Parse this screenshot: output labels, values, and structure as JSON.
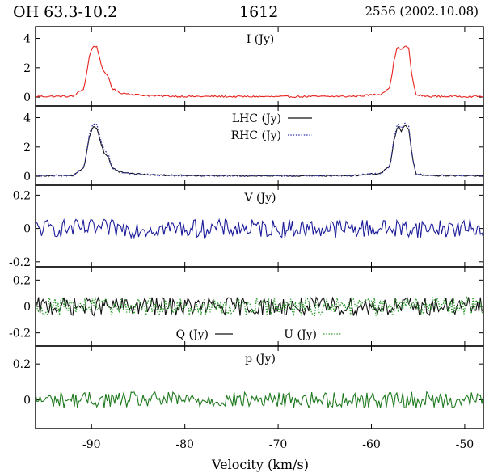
{
  "header": {
    "source": "OH 63.3-10.2",
    "frequency": "1612",
    "observation": "2556 (2002.10.08)"
  },
  "colors": {
    "I": "#e8221e",
    "LHC": "#111111",
    "RHC": "#2f2fa8",
    "V": "#1c1c9a",
    "Q": "#111111",
    "U": "#2e9a2e",
    "p": "#1e7a1e",
    "axis": "#000000"
  },
  "chart_data": {
    "type": "line",
    "xlabel": "Velocity (km/s)",
    "xlim": [
      -96,
      -48
    ],
    "xticks": [
      -90,
      -80,
      -70,
      -60,
      -50
    ],
    "xtick_labels": [
      "-90",
      "-80",
      "-70",
      "-60",
      "-50"
    ],
    "panels": [
      {
        "id": "I",
        "ylim": [
          -0.6,
          4.8
        ],
        "yticks": [
          0,
          2,
          4
        ],
        "ytick_labels": [
          "0",
          "2",
          "4"
        ],
        "series": [
          {
            "name": "I (Jy)",
            "color_key": "I",
            "style": "solid",
            "x": [
              -96,
              -92,
              -90.8,
              -90.2,
              -89.8,
              -89.4,
              -89.0,
              -88.6,
              -88.2,
              -87.8,
              -87.0,
              -85.0,
              -83.0,
              -80.0,
              -70.0,
              -62.0,
              -59.0,
              -58.0,
              -57.6,
              -57.2,
              -56.8,
              -56.4,
              -56.0,
              -55.6,
              -55.2,
              -54.0,
              -48.0
            ],
            "y": [
              0.05,
              0.05,
              0.6,
              2.9,
              3.5,
              3.4,
              2.3,
              1.6,
              1.4,
              0.6,
              0.3,
              0.15,
              0.08,
              0.05,
              0.03,
              0.05,
              0.2,
              0.7,
              2.4,
              3.5,
              3.2,
              3.5,
              3.3,
              1.2,
              0.15,
              0.05,
              0.05
            ]
          }
        ],
        "noise_level": 0.06,
        "legend": "top-center"
      },
      {
        "id": "LR",
        "ylim": [
          -0.6,
          4.8
        ],
        "yticks": [
          0,
          2,
          4
        ],
        "ytick_labels": [
          "0",
          "2",
          "4"
        ],
        "series": [
          {
            "name": "LHC (Jy)",
            "color_key": "LHC",
            "style": "solid",
            "x": [
              -96,
              -92,
              -90.8,
              -90.2,
              -89.8,
              -89.4,
              -89.0,
              -88.6,
              -88.2,
              -87.8,
              -87.0,
              -85.0,
              -83.0,
              -80.0,
              -70.0,
              -62.0,
              -59.0,
              -58.0,
              -57.6,
              -57.2,
              -56.8,
              -56.4,
              -56.0,
              -55.6,
              -55.2,
              -54.0,
              -48.0
            ],
            "y": [
              0.05,
              0.05,
              0.6,
              2.8,
              3.4,
              3.3,
              2.2,
              1.5,
              1.3,
              0.6,
              0.3,
              0.15,
              0.08,
              0.05,
              0.03,
              0.05,
              0.2,
              0.7,
              2.4,
              3.4,
              3.1,
              3.5,
              3.2,
              1.2,
              0.15,
              0.05,
              0.05
            ]
          },
          {
            "name": "RHC (Jy)",
            "color_key": "RHC",
            "style": "dotted",
            "x": [
              -96,
              -92,
              -90.8,
              -90.2,
              -89.8,
              -89.4,
              -89.0,
              -88.6,
              -88.2,
              -87.8,
              -87.0,
              -85.0,
              -83.0,
              -80.0,
              -70.0,
              -62.0,
              -59.0,
              -58.0,
              -57.6,
              -57.2,
              -56.8,
              -56.4,
              -56.0,
              -55.6,
              -55.2,
              -54.0,
              -48.0
            ],
            "y": [
              0.05,
              0.05,
              0.6,
              3.0,
              3.6,
              3.5,
              2.4,
              1.7,
              1.5,
              0.6,
              0.3,
              0.15,
              0.08,
              0.05,
              0.03,
              0.05,
              0.2,
              0.7,
              2.5,
              3.6,
              3.3,
              3.7,
              3.4,
              1.3,
              0.15,
              0.05,
              0.05
            ]
          }
        ],
        "noise_level": 0.05,
        "legend": "top-center"
      },
      {
        "id": "V",
        "ylim": [
          -0.23,
          0.26
        ],
        "yticks": [
          -0.2,
          0,
          0.2
        ],
        "ytick_labels": [
          "-0.2",
          "0",
          "0.2"
        ],
        "series": [
          {
            "name": "V (Jy)",
            "color_key": "V",
            "style": "solid",
            "x": [
              -96,
              -48
            ],
            "y": [
              0,
              0
            ]
          }
        ],
        "noise_level": 0.055,
        "legend": "top-center"
      },
      {
        "id": "QU",
        "ylim": [
          -0.3,
          0.3
        ],
        "yticks": [
          -0.2,
          0,
          0.2
        ],
        "ytick_labels": [
          "-0.2",
          "0",
          "0.2"
        ],
        "series": [
          {
            "name": "Q (Jy)",
            "color_key": "Q",
            "style": "solid",
            "x": [
              -96,
              -48
            ],
            "y": [
              0,
              0
            ]
          },
          {
            "name": "U (Jy)",
            "color_key": "U",
            "style": "dotted",
            "x": [
              -96,
              -48
            ],
            "y": [
              0,
              0
            ]
          }
        ],
        "noise_level": 0.07,
        "legend": "bottom-center"
      },
      {
        "id": "p",
        "ylim": [
          -0.16,
          0.3
        ],
        "yticks": [
          0,
          0.2
        ],
        "ytick_labels": [
          "0",
          "0.2"
        ],
        "series": [
          {
            "name": "p (Jy)",
            "color_key": "p",
            "style": "solid",
            "x": [
              -96,
              -48
            ],
            "y": [
              0,
              0
            ]
          }
        ],
        "noise_level": 0.045,
        "legend": "top-center"
      }
    ]
  }
}
